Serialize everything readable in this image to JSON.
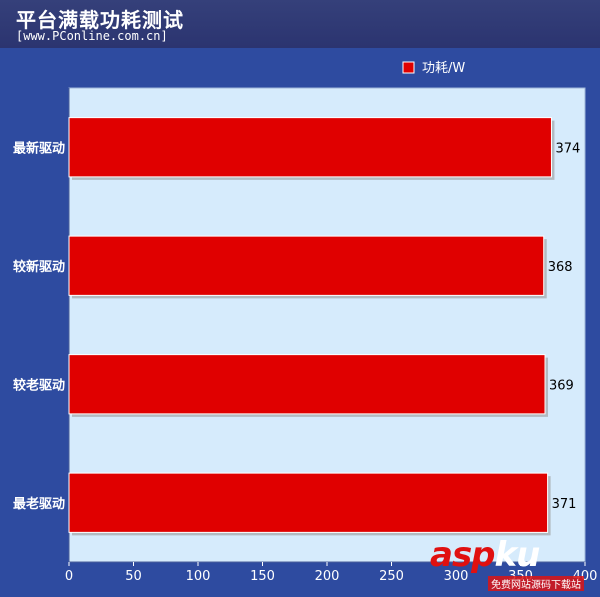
{
  "header": {
    "title": "平台满载功耗测试",
    "source": "[www.PConline.com.cn]"
  },
  "colors": {
    "bar": "#e00000",
    "plot_bg": "#d6ebfc",
    "frame_bg": "#2e4ba0"
  },
  "watermark": {
    "brand_a": "asp",
    "brand_b": "ku",
    "sub": "免费网站源码下载站"
  },
  "chart_data": {
    "type": "bar",
    "orientation": "horizontal",
    "title": "平台满载功耗测试",
    "categories": [
      "最新驱动",
      "较新驱动",
      "较老驱动",
      "最老驱动"
    ],
    "series": [
      {
        "name": "功耗/W",
        "values": [
          374,
          368,
          369,
          371
        ]
      }
    ],
    "xlim": [
      0,
      400
    ],
    "xticks": [
      0,
      50,
      100,
      150,
      200,
      250,
      300,
      350,
      400
    ],
    "legend_position": "top-right",
    "grid": false
  }
}
